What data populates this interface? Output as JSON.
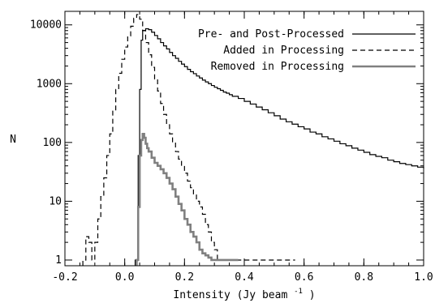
{
  "chart_data": {
    "type": "line",
    "drawstyle": "histogram-step",
    "xlabel": "Intensity (Jy beam",
    "xlabel_superscript": "-1",
    "xlabel_suffix": ")",
    "ylabel": "N",
    "xlim": [
      -0.2,
      1.0
    ],
    "ylim": [
      0.8,
      17000
    ],
    "yscale": "log",
    "grid": false,
    "legend_position": "top-right",
    "x_ticks": [
      -0.2,
      0.0,
      0.2,
      0.4,
      0.6,
      0.8,
      1.0
    ],
    "x_tick_labels": [
      "-0.2",
      "0.0",
      "0.2",
      "0.4",
      "0.6",
      "0.8",
      "1.0"
    ],
    "y_ticks": [
      1,
      10,
      100,
      1000,
      10000
    ],
    "y_tick_labels": [
      "1",
      "10",
      "100",
      "1000",
      "10000"
    ],
    "colors": {
      "pre_post": "#000000",
      "added": "#000000",
      "removed": "#808080"
    },
    "series": [
      {
        "name": "Pre- and Post-Processed",
        "style": "solid",
        "color": "#000000",
        "points": [
          [
            0.035,
            1
          ],
          [
            0.045,
            60
          ],
          [
            0.05,
            800
          ],
          [
            0.055,
            5500
          ],
          [
            0.06,
            8000
          ],
          [
            0.07,
            8600
          ],
          [
            0.08,
            8300
          ],
          [
            0.09,
            7500
          ],
          [
            0.1,
            6600
          ],
          [
            0.11,
            5800
          ],
          [
            0.12,
            5000
          ],
          [
            0.13,
            4400
          ],
          [
            0.14,
            3900
          ],
          [
            0.15,
            3400
          ],
          [
            0.16,
            3000
          ],
          [
            0.17,
            2700
          ],
          [
            0.18,
            2400
          ],
          [
            0.19,
            2150
          ],
          [
            0.2,
            1950
          ],
          [
            0.21,
            1750
          ],
          [
            0.22,
            1600
          ],
          [
            0.23,
            1480
          ],
          [
            0.24,
            1350
          ],
          [
            0.25,
            1250
          ],
          [
            0.26,
            1150
          ],
          [
            0.27,
            1070
          ],
          [
            0.28,
            1000
          ],
          [
            0.29,
            930
          ],
          [
            0.3,
            870
          ],
          [
            0.31,
            820
          ],
          [
            0.32,
            770
          ],
          [
            0.33,
            720
          ],
          [
            0.34,
            690
          ],
          [
            0.35,
            650
          ],
          [
            0.36,
            610
          ],
          [
            0.38,
            560
          ],
          [
            0.4,
            500
          ],
          [
            0.42,
            450
          ],
          [
            0.44,
            400
          ],
          [
            0.46,
            360
          ],
          [
            0.48,
            320
          ],
          [
            0.5,
            285
          ],
          [
            0.52,
            250
          ],
          [
            0.54,
            225
          ],
          [
            0.56,
            205
          ],
          [
            0.58,
            185
          ],
          [
            0.6,
            170
          ],
          [
            0.62,
            150
          ],
          [
            0.64,
            140
          ],
          [
            0.66,
            125
          ],
          [
            0.68,
            115
          ],
          [
            0.7,
            105
          ],
          [
            0.72,
            95
          ],
          [
            0.74,
            88
          ],
          [
            0.76,
            80
          ],
          [
            0.78,
            74
          ],
          [
            0.8,
            68
          ],
          [
            0.82,
            62
          ],
          [
            0.84,
            58
          ],
          [
            0.86,
            55
          ],
          [
            0.88,
            50
          ],
          [
            0.9,
            47
          ],
          [
            0.92,
            44
          ],
          [
            0.94,
            42
          ],
          [
            0.96,
            40
          ],
          [
            0.98,
            38
          ],
          [
            1.0,
            36
          ]
        ]
      },
      {
        "name": "Added in Processing",
        "style": "dashed",
        "color": "#000000",
        "points": [
          [
            -0.14,
            1
          ],
          [
            -0.13,
            2.5
          ],
          [
            -0.12,
            2
          ],
          [
            -0.11,
            1
          ],
          [
            -0.1,
            2
          ],
          [
            -0.09,
            5
          ],
          [
            -0.08,
            12
          ],
          [
            -0.07,
            25
          ],
          [
            -0.06,
            60
          ],
          [
            -0.05,
            140
          ],
          [
            -0.04,
            350
          ],
          [
            -0.03,
            800
          ],
          [
            -0.02,
            1500
          ],
          [
            -0.01,
            2600
          ],
          [
            0.0,
            4200
          ],
          [
            0.01,
            6500
          ],
          [
            0.02,
            9500
          ],
          [
            0.03,
            13000
          ],
          [
            0.04,
            15000
          ],
          [
            0.05,
            12500
          ],
          [
            0.06,
            8000
          ],
          [
            0.07,
            5000
          ],
          [
            0.08,
            3100
          ],
          [
            0.09,
            1900
          ],
          [
            0.1,
            1200
          ],
          [
            0.11,
            750
          ],
          [
            0.12,
            460
          ],
          [
            0.13,
            300
          ],
          [
            0.14,
            200
          ],
          [
            0.15,
            140
          ],
          [
            0.16,
            100
          ],
          [
            0.17,
            70
          ],
          [
            0.18,
            52
          ],
          [
            0.19,
            40
          ],
          [
            0.2,
            30
          ],
          [
            0.21,
            22
          ],
          [
            0.22,
            17
          ],
          [
            0.23,
            13
          ],
          [
            0.24,
            10
          ],
          [
            0.25,
            8
          ],
          [
            0.26,
            6
          ],
          [
            0.27,
            4
          ],
          [
            0.28,
            3
          ],
          [
            0.29,
            2
          ],
          [
            0.3,
            1.5
          ],
          [
            0.31,
            1
          ],
          [
            0.33,
            1
          ],
          [
            0.36,
            1
          ],
          [
            0.44,
            1
          ],
          [
            0.55,
            1
          ]
        ]
      },
      {
        "name": "Removed in Processing",
        "style": "solid-thick",
        "color": "#808080",
        "points": [
          [
            0.04,
            1
          ],
          [
            0.045,
            8
          ],
          [
            0.05,
            60
          ],
          [
            0.055,
            110
          ],
          [
            0.06,
            140
          ],
          [
            0.065,
            120
          ],
          [
            0.07,
            95
          ],
          [
            0.075,
            80
          ],
          [
            0.08,
            70
          ],
          [
            0.09,
            55
          ],
          [
            0.1,
            45
          ],
          [
            0.11,
            40
          ],
          [
            0.12,
            35
          ],
          [
            0.13,
            30
          ],
          [
            0.14,
            25
          ],
          [
            0.15,
            20
          ],
          [
            0.16,
            16
          ],
          [
            0.17,
            12
          ],
          [
            0.18,
            9
          ],
          [
            0.19,
            7
          ],
          [
            0.2,
            5
          ],
          [
            0.21,
            4
          ],
          [
            0.22,
            3
          ],
          [
            0.23,
            2.5
          ],
          [
            0.24,
            2
          ],
          [
            0.25,
            1.5
          ],
          [
            0.26,
            1.3
          ],
          [
            0.27,
            1.2
          ],
          [
            0.28,
            1.1
          ],
          [
            0.29,
            1
          ],
          [
            0.3,
            1
          ],
          [
            0.32,
            1
          ],
          [
            0.34,
            1
          ],
          [
            0.36,
            1
          ]
        ]
      }
    ]
  }
}
